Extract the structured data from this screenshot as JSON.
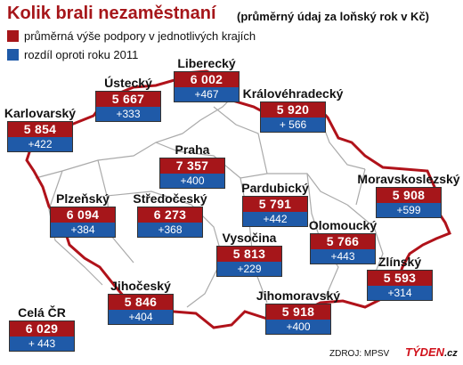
{
  "header": {
    "title": "Kolik brali nezaměstnaní",
    "subtitle": "(průměrný údaj za loňský rok v Kč)"
  },
  "legend": [
    {
      "label": "průměrná výše podpory v jednotlivých krajích",
      "color": "#a6161a"
    },
    {
      "label": "rozdíl oproti roku 2011",
      "color": "#1f5aa8"
    }
  ],
  "colors": {
    "value_box": "#a6161a",
    "diff_box": "#1f5aa8",
    "border_line": "#b0121a",
    "region_line": "#aaaaaa"
  },
  "regions": [
    {
      "name": "Liberecký",
      "value": "6 002",
      "diff": "+467"
    },
    {
      "name": "Ústecký",
      "value": "5 667",
      "diff": "+333"
    },
    {
      "name": "Královéhradecký",
      "value": "5 920",
      "diff": "+ 566"
    },
    {
      "name": "Karlovarský",
      "value": "5 854",
      "diff": "+422"
    },
    {
      "name": "Praha",
      "value": "7 357",
      "diff": "+400"
    },
    {
      "name": "Pardubický",
      "value": "5 791",
      "diff": "+442"
    },
    {
      "name": "Moravskoslezský",
      "value": "5 908",
      "diff": "+599"
    },
    {
      "name": "Plzeňský",
      "value": "6 094",
      "diff": "+384"
    },
    {
      "name": "Středočeský",
      "value": "6 273",
      "diff": "+368"
    },
    {
      "name": "Vysočina",
      "value": "5 813",
      "diff": "+229"
    },
    {
      "name": "Olomoucký",
      "value": "5 766",
      "diff": "+443"
    },
    {
      "name": "Zlínský",
      "value": "5 593",
      "diff": "+314"
    },
    {
      "name": "Jihočeský",
      "value": "5 846",
      "diff": "+404"
    },
    {
      "name": "Jihomoravský",
      "value": "5 918",
      "diff": "+400"
    },
    {
      "name": "Celá ČR",
      "value": "6 029",
      "diff": "+ 443"
    }
  ],
  "source": "ZDROJ: MPSV",
  "brand": {
    "name": "TÝDEN",
    "suffix": ".cz"
  }
}
